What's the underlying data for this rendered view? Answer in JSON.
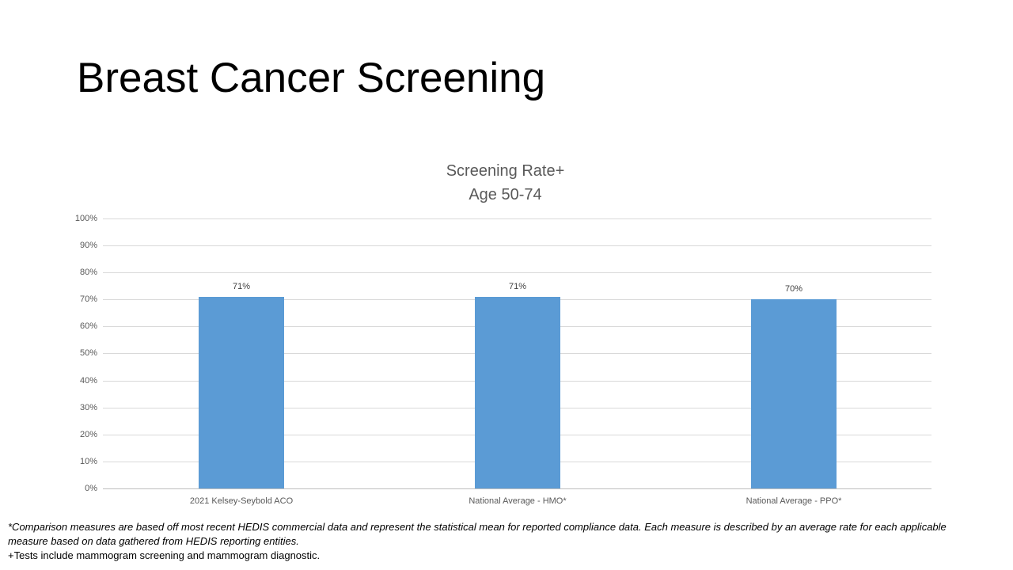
{
  "slide": {
    "title": "Breast Cancer Screening"
  },
  "chart_data": {
    "type": "bar",
    "title": "Screening Rate+",
    "subtitle": "Age 50-74",
    "categories": [
      "2021 Kelsey-Seybold ACO",
      "National Average - HMO*",
      "National Average - PPO*"
    ],
    "values": [
      71,
      71,
      70
    ],
    "data_labels": [
      "71%",
      "71%",
      "70%"
    ],
    "ylim": [
      0,
      100
    ],
    "ytick_step": 10,
    "ytick_labels": [
      "0%",
      "10%",
      "20%",
      "30%",
      "40%",
      "50%",
      "60%",
      "70%",
      "80%",
      "90%",
      "100%"
    ],
    "grid": true,
    "legend": "none",
    "colors": {
      "bar": "#5B9BD5",
      "gridline": "#D9D9D9",
      "axis_line": "#BFBFBF",
      "tick_text": "#595959",
      "category_text": "#595959",
      "data_label_text": "#404040",
      "chart_title_text": "#595959"
    }
  },
  "footnotes": {
    "comparison_note": "*Comparison measures are based off most recent HEDIS commercial data and represent the statistical mean for reported compliance data. Each measure is described by an average rate for each applicable measure based on data gathered from HEDIS reporting entities.",
    "tests_note": "+Tests include mammogram screening and mammogram diagnostic."
  }
}
